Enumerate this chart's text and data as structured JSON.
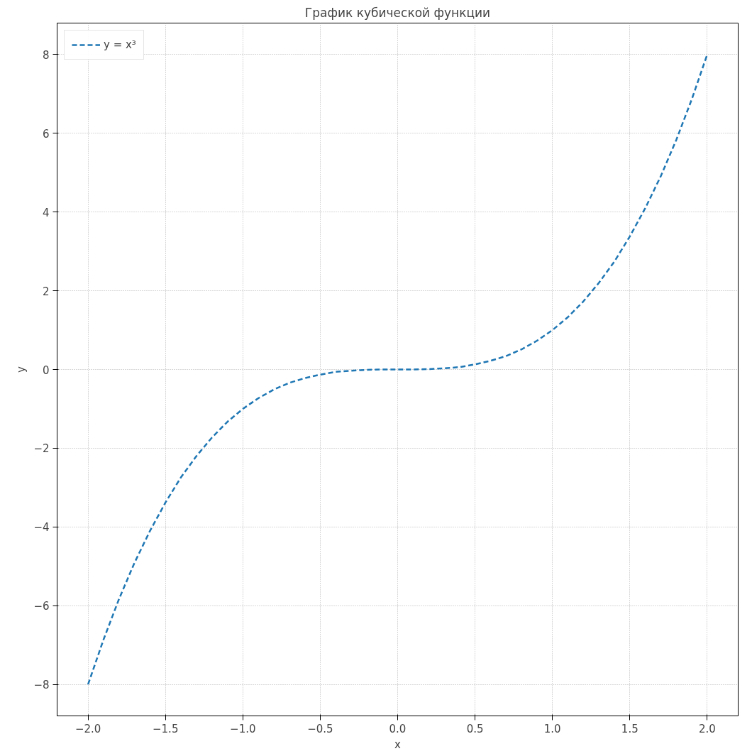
{
  "chart_data": {
    "type": "line",
    "title": "График кубической функции",
    "xlabel": "x",
    "ylabel": "y",
    "x": [
      -2.0,
      -1.9,
      -1.8,
      -1.7,
      -1.6,
      -1.5,
      -1.4,
      -1.3,
      -1.2,
      -1.1,
      -1.0,
      -0.9,
      -0.8,
      -0.7,
      -0.6,
      -0.5,
      -0.4,
      -0.3,
      -0.2,
      -0.1,
      0.0,
      0.1,
      0.2,
      0.3,
      0.4,
      0.5,
      0.6,
      0.7,
      0.8,
      0.9,
      1.0,
      1.1,
      1.2,
      1.3,
      1.4,
      1.5,
      1.6,
      1.7,
      1.8,
      1.9,
      2.0
    ],
    "series": [
      {
        "name": "y = x³",
        "color": "#1f77b4",
        "values": [
          -8,
          -6.86,
          -5.83,
          -4.91,
          -4.1,
          -3.38,
          -2.74,
          -2.2,
          -1.73,
          -1.33,
          -1,
          -0.73,
          -0.51,
          -0.34,
          -0.22,
          -0.13,
          -0.06,
          -0.03,
          -0.01,
          0,
          0,
          0,
          0.01,
          0.03,
          0.06,
          0.13,
          0.22,
          0.34,
          0.51,
          0.73,
          1,
          1.33,
          1.73,
          2.2,
          2.74,
          3.38,
          4.1,
          4.91,
          5.83,
          6.86,
          8
        ]
      }
    ],
    "xlim": [
      -2.2,
      2.2
    ],
    "ylim": [
      -8.8,
      8.8
    ],
    "xticks": [
      {
        "value": -2.0,
        "label": "−2.0"
      },
      {
        "value": -1.5,
        "label": "−1.5"
      },
      {
        "value": -1.0,
        "label": "−1.0"
      },
      {
        "value": -0.5,
        "label": "−0.5"
      },
      {
        "value": 0,
        "label": "0.0"
      },
      {
        "value": 0.5,
        "label": "0.5"
      },
      {
        "value": 1.0,
        "label": "1.0"
      },
      {
        "value": 1.5,
        "label": "1.5"
      },
      {
        "value": 2.0,
        "label": "2.0"
      }
    ],
    "yticks": [
      {
        "value": -8,
        "label": "−8"
      },
      {
        "value": -6,
        "label": "−6"
      },
      {
        "value": -4,
        "label": "−4"
      },
      {
        "value": -2,
        "label": "−2"
      },
      0,
      2,
      4,
      6,
      8
    ],
    "grid": true,
    "legend": "top left",
    "line_style": "dashed"
  }
}
